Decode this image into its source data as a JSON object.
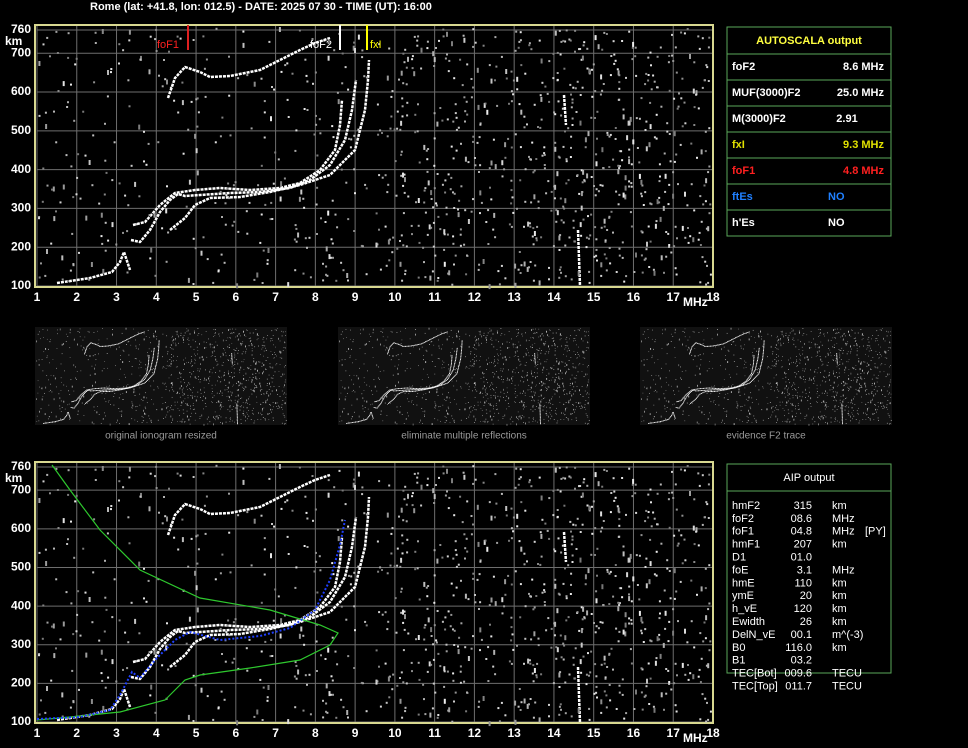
{
  "header": "Rome (lat: +41.8, lon: 012.5) - DATE: 2025 07 30 - TIME (UT): 16:00",
  "ionogram": {
    "y_unit": "km",
    "x_unit": "MHz",
    "y_labels": [
      "760",
      "700",
      "600",
      "500",
      "400",
      "300",
      "200",
      "100"
    ],
    "x_labels": [
      "1",
      "2",
      "3",
      "4",
      "5",
      "6",
      "7",
      "8",
      "9",
      "10",
      "11",
      "12",
      "13",
      "14",
      "15",
      "16",
      "17",
      "18"
    ],
    "markers": [
      "foF1",
      "foF2",
      "fxI"
    ]
  },
  "thumbnails": [
    "original ionogram resized",
    "eliminate multiple reflections",
    "evidence F2 trace"
  ],
  "autoscala": {
    "title": "AUTOSCALA output",
    "rows": [
      [
        "foF2",
        "8.6 MHz"
      ],
      [
        "MUF(3000)F2",
        "25.0 MHz"
      ],
      [
        "M(3000)F2",
        "2.91"
      ],
      [
        "fxI",
        "9.3 MHz"
      ],
      [
        "foF1",
        "4.8 MHz"
      ],
      [
        "ftEs",
        "NO"
      ],
      [
        "h'Es",
        "NO"
      ]
    ]
  },
  "aip": {
    "title": "AIP output",
    "rows": [
      [
        "hmF2",
        "315",
        "km"
      ],
      [
        "foF2",
        "08.6",
        "MHz"
      ],
      [
        "foF1",
        "04.8",
        "MHz",
        "[PY]"
      ],
      [
        "hmF1",
        "207",
        "km"
      ],
      [
        "D1",
        "01.0"
      ],
      [
        "foE",
        "3.1",
        "MHz"
      ],
      [
        "hmE",
        "110",
        "km"
      ],
      [
        "ymE",
        "20",
        "km"
      ],
      [
        "h_vE",
        "120",
        "km"
      ],
      [
        "Ewidth",
        "26",
        "km"
      ],
      [
        "DelN_vE",
        "00.1",
        "m^(-3)"
      ],
      [
        "B0",
        "116.0",
        "km"
      ],
      [
        "B1",
        "03.2"
      ],
      [
        "TEC[Bot]",
        "009.6",
        "TECU"
      ],
      [
        "TEC[Top]",
        "011.7",
        "TECU"
      ]
    ]
  }
}
